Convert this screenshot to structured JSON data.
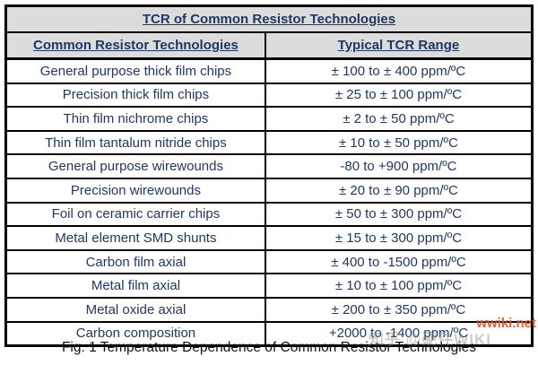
{
  "table": {
    "title": "TCR of Common Resistor Technologies",
    "columns": {
      "technology": "Common Resistor Technologies",
      "range": "Typical TCR Range"
    },
    "rows": [
      {
        "technology": "General purpose thick film chips",
        "range": "± 100 to ± 400 ppm/ºC"
      },
      {
        "technology": "Precision thick film chips",
        "range": "± 25 to ± 100 ppm/ºC"
      },
      {
        "technology": "Thin film nichrome chips",
        "range": "± 2 to ± 50 ppm/ºC"
      },
      {
        "technology": "Thin film tantalum nitride chips",
        "range": "± 10 to ± 50 ppm/ºC"
      },
      {
        "technology": "General purpose wirewounds",
        "range": "-80 to +900 ppm/ºC"
      },
      {
        "technology": "Precision wirewounds",
        "range": "± 20 to ± 90 ppm/ºC"
      },
      {
        "technology": "Foil on ceramic carrier chips",
        "range": "± 50 to ± 300 ppm/ºC"
      },
      {
        "technology": "Metal element SMD shunts",
        "range": "± 15 to ± 300 ppm/ºC"
      },
      {
        "technology": "Carbon film axial",
        "range": "± 400 to -1500 ppm/ºC"
      },
      {
        "technology": "Metal film axial",
        "range": "± 10 to ± 100 ppm/ºC"
      },
      {
        "technology": "Metal oxide axial",
        "range": "± 200 to ± 350 ppm/ºC"
      },
      {
        "technology": "Carbon composition",
        "range": "+2000 to -1400 ppm/ºC"
      }
    ]
  },
  "caption": "Fig. 1 Temperature Dependence of Common Resistor Technologies",
  "watermarks": {
    "site": "wwiki.net",
    "zhihu": "知乎 @硬件WIKI"
  },
  "colors": {
    "table_text": "#1f3864",
    "header_background": "#dcdcdc",
    "border": "#000000",
    "caption_text": "#111111",
    "watermark_site": "#e25528",
    "watermark_zhihu": "#828282"
  }
}
